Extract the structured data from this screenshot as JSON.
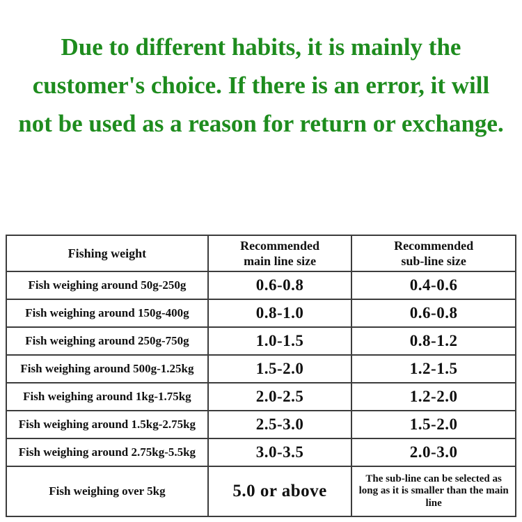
{
  "colors": {
    "notice_green": "#1e8c1e",
    "table_border": "#3c3c3c",
    "text_black": "#101010",
    "background": "#ffffff"
  },
  "notice": {
    "text": "Due to different habits, it is mainly the customer's choice. If there is an error, it will not be used as a reason for return or exchange."
  },
  "table": {
    "headers": [
      "Fishing weight",
      "Recommended\nmain line size",
      "Recommended\nsub-line size"
    ],
    "rows": [
      {
        "weight": "Fish weighing around 50g-250g",
        "main": "0.6-0.8",
        "sub": "0.4-0.6"
      },
      {
        "weight": "Fish weighing around 150g-400g",
        "main": "0.8-1.0",
        "sub": "0.6-0.8"
      },
      {
        "weight": "Fish weighing around 250g-750g",
        "main": "1.0-1.5",
        "sub": "0.8-1.2"
      },
      {
        "weight": "Fish weighing around 500g-1.25kg",
        "main": "1.5-2.0",
        "sub": "1.2-1.5"
      },
      {
        "weight": "Fish weighing around 1kg-1.75kg",
        "main": "2.0-2.5",
        "sub": "1.2-2.0"
      },
      {
        "weight": "Fish weighing around 1.5kg-2.75kg",
        "main": "2.5-3.0",
        "sub": "1.5-2.0"
      },
      {
        "weight": "Fish weighing around 2.75kg-5.5kg",
        "main": "3.0-3.5",
        "sub": "2.0-3.0"
      },
      {
        "weight": "Fish weighing over 5kg",
        "main": "5.0 or above",
        "sub": "The sub-line can be selected as long as it is smaller than the main line"
      }
    ]
  }
}
